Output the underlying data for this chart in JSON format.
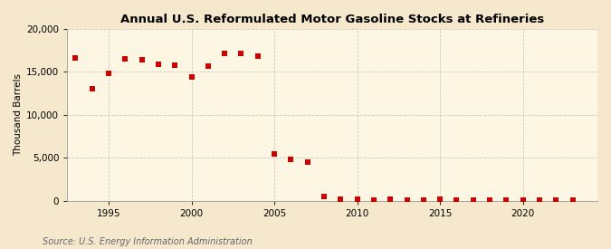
{
  "title": "Annual U.S. Reformulated Motor Gasoline Stocks at Refineries",
  "ylabel": "Thousand Barrels",
  "source": "Source: U.S. Energy Information Administration",
  "background_color": "#f5e8cc",
  "plot_background_color": "#fdf6e3",
  "marker_color": "#cc0000",
  "marker_size": 4,
  "years": [
    1993,
    1994,
    1995,
    1996,
    1997,
    1998,
    1999,
    2000,
    2001,
    2002,
    2003,
    2004,
    2005,
    2006,
    2007,
    2008,
    2009,
    2010,
    2011,
    2012,
    2013,
    2014,
    2015,
    2016,
    2017,
    2018,
    2019,
    2020,
    2021,
    2022,
    2023
  ],
  "values": [
    16600,
    13000,
    14800,
    16500,
    16400,
    15900,
    15800,
    14400,
    15700,
    17200,
    17100,
    16800,
    5500,
    4800,
    4500,
    500,
    200,
    150,
    100,
    150,
    100,
    100,
    200,
    100,
    100,
    100,
    100,
    100,
    100,
    100,
    100
  ],
  "ylim": [
    0,
    20000
  ],
  "yticks": [
    0,
    5000,
    10000,
    15000,
    20000
  ],
  "xlim": [
    1992.5,
    2024.5
  ],
  "xticks": [
    1995,
    2000,
    2005,
    2010,
    2015,
    2020
  ],
  "grid_color": "#aaaaaa",
  "grid_alpha": 0.6,
  "grid_linewidth": 0.6,
  "title_fontsize": 9.5,
  "ylabel_fontsize": 7.5,
  "tick_fontsize": 7.5,
  "source_fontsize": 7
}
